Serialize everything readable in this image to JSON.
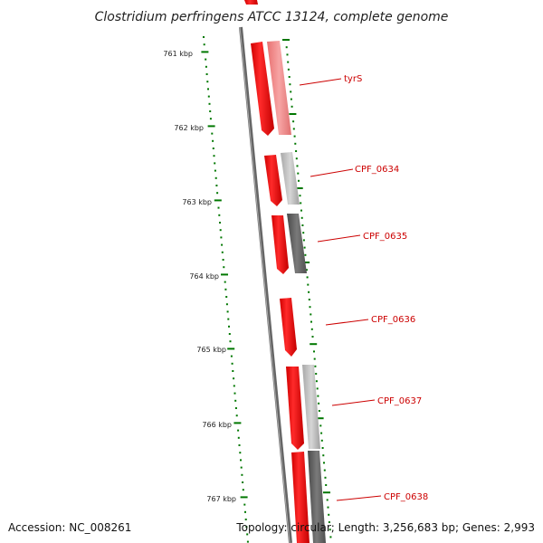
{
  "title": "Clostridium perfringens ATCC 13124, complete genome",
  "footer": {
    "accession": "Accession: NC_008261",
    "topology": "Topology: circular; Length: 3,256,683 bp; Genes: 2,993"
  },
  "ticks": [
    {
      "label": "761 kbp"
    },
    {
      "label": "762 kbp"
    },
    {
      "label": "763 kbp"
    },
    {
      "label": "764 kbp"
    },
    {
      "label": "765 kbp"
    },
    {
      "label": "766 kbp"
    },
    {
      "label": "767 kbp"
    }
  ],
  "genes": [
    {
      "label": "tyrS"
    },
    {
      "label": "CPF_0634"
    },
    {
      "label": "CPF_0635"
    },
    {
      "label": "CPF_0636"
    },
    {
      "label": "CPF_0637"
    },
    {
      "label": "CPF_0638"
    }
  ],
  "colors": {
    "cds": "#ff0000",
    "backbone": "#777777",
    "tick": "#007700",
    "label": "#cc0000"
  }
}
